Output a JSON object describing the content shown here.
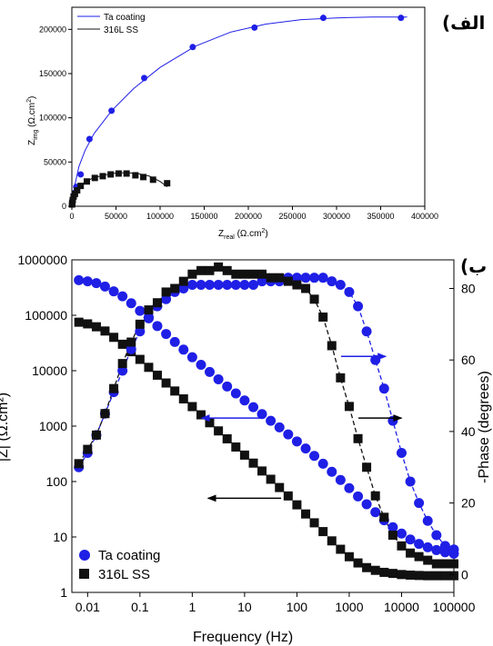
{
  "panel_labels": {
    "top": "(الف",
    "bottom": "(ب"
  },
  "colors": {
    "ta": "#1f1fe6",
    "ss": "#111111",
    "arrow_blue": "#1f1fe6",
    "arrow_black": "#000000"
  },
  "chart_data": [
    {
      "type": "scatter",
      "title": "",
      "xlabel": "Z_real (Ω.cm²)",
      "ylabel": "Z_img (Ω.cm²)",
      "xlabel_text": {
        "main": "Z",
        "sub": "real",
        "unit": " (Ω.cm",
        "sup": "2",
        "close": ")"
      },
      "ylabel_text": {
        "main": "Z",
        "sub": "img",
        "unit": " (Ω.cm",
        "sup": "2",
        "close": ")"
      },
      "xlim": [
        0,
        400000
      ],
      "ylim": [
        0,
        225000
      ],
      "x_ticks": [
        "0",
        "50000",
        "100000",
        "150000",
        "200000",
        "250000",
        "300000",
        "350000",
        "400000"
      ],
      "y_ticks": [
        "0",
        "50000",
        "100000",
        "150000",
        "200000"
      ],
      "legend": "top-left",
      "grid": false,
      "series": [
        {
          "name": "Ta coating",
          "marker": "circle",
          "line": "solid-fit",
          "x": [
            300,
            800,
            1500,
            3000,
            5000,
            10000,
            20000,
            45000,
            82000,
            137000,
            207000,
            285000,
            373000
          ],
          "y": [
            2000,
            5000,
            9000,
            15000,
            22000,
            36000,
            76000,
            108000,
            145000,
            180000,
            202000,
            213000,
            213000
          ],
          "fit_x": [
            0,
            3000,
            8000,
            15000,
            25000,
            45000,
            70000,
            100000,
            140000,
            180000,
            220000,
            260000,
            300000,
            340000,
            380000
          ],
          "fit_y": [
            0,
            22000,
            45000,
            63000,
            82000,
            108000,
            133000,
            157000,
            181000,
            197000,
            206000,
            211000,
            213000,
            214000,
            214000
          ]
        },
        {
          "name": "316L SS",
          "marker": "square",
          "line": "solid-fit",
          "x": [
            200,
            500,
            1000,
            2000,
            3500,
            6000,
            10000,
            17000,
            26000,
            35000,
            44000,
            53000,
            62000,
            72000,
            81000,
            92000,
            108000
          ],
          "y": [
            2000,
            4000,
            7000,
            11000,
            14000,
            18000,
            23000,
            28000,
            32000,
            34000,
            36000,
            37000,
            37000,
            35000,
            33000,
            30000,
            26000
          ],
          "fit_x": [
            0,
            5000,
            12000,
            22000,
            35000,
            50000,
            62000,
            75000,
            88000,
            100000,
            108000
          ],
          "fit_y": [
            0,
            17000,
            25000,
            31000,
            35000,
            37500,
            38000,
            37000,
            34000,
            28000,
            22000
          ]
        }
      ]
    },
    {
      "type": "scatter",
      "title": "",
      "xlabel": "Frequency (Hz)",
      "ylabel_left": "|Z| (Ω.cm²)",
      "ylabel_right": "-Phase (degrees)",
      "x_scale": "log",
      "y_left_scale": "log",
      "xlim": [
        0.005,
        100000
      ],
      "ylim_left": [
        1,
        1000000
      ],
      "ylim_right": [
        -5,
        88
      ],
      "x_ticks": [
        "0.01",
        "0.1",
        "1",
        "10",
        "100",
        "1000",
        "10000",
        "100000"
      ],
      "y_left_ticks": [
        "1",
        "10",
        "100",
        "1000",
        "10000",
        "100000",
        "1000000"
      ],
      "y_right_ticks": [
        "0",
        "20",
        "40",
        "60",
        "80"
      ],
      "legend": "bottom-left",
      "grid": false,
      "series": [
        {
          "name": "Ta coating",
          "quantity": "|Z|",
          "axis": "left",
          "marker": "circle",
          "x": [
            0.0068,
            0.01,
            0.0147,
            0.0215,
            0.0316,
            0.0464,
            0.0681,
            0.1,
            0.147,
            0.215,
            0.316,
            0.464,
            0.681,
            1,
            1.47,
            2.15,
            3.16,
            4.64,
            6.81,
            10,
            14.7,
            21.5,
            31.6,
            46.4,
            68.1,
            100,
            147,
            215,
            316,
            464,
            681,
            1000,
            1470,
            2150,
            3160,
            4640,
            6810,
            10000,
            14700,
            21500,
            31600,
            46400,
            68100,
            100000
          ],
          "y": [
            430000,
            410000,
            380000,
            330000,
            270000,
            220000,
            165000,
            120000,
            88000,
            64000,
            46000,
            33000,
            24000,
            17500,
            12800,
            9500,
            7000,
            5200,
            3900,
            2900,
            2200,
            1650,
            1250,
            950,
            710,
            530,
            395,
            290,
            210,
            150,
            107,
            76,
            54,
            39,
            28,
            20,
            15,
            11.5,
            9,
            7.5,
            6.5,
            5.8,
            5.3,
            5
          ]
        },
        {
          "name": "316L SS",
          "quantity": "|Z|",
          "axis": "left",
          "marker": "square",
          "x": [
            0.0068,
            0.01,
            0.0147,
            0.0215,
            0.0316,
            0.0464,
            0.0681,
            0.1,
            0.147,
            0.215,
            0.316,
            0.464,
            0.681,
            1,
            1.47,
            2.15,
            3.16,
            4.64,
            6.81,
            10,
            14.7,
            21.5,
            31.6,
            46.4,
            68.1,
            100,
            147,
            215,
            316,
            464,
            681,
            1000,
            1470,
            2150,
            3160,
            4640,
            6810,
            10000,
            14700,
            21500,
            31600,
            46400,
            68100,
            100000
          ],
          "y": [
            75000,
            70000,
            62000,
            52000,
            40000,
            30000,
            22000,
            16000,
            11500,
            8300,
            6000,
            4300,
            3100,
            2250,
            1600,
            1150,
            820,
            590,
            420,
            300,
            215,
            155,
            110,
            78,
            55,
            38,
            26,
            18,
            12.5,
            8.5,
            6,
            4.4,
            3.4,
            2.8,
            2.5,
            2.3,
            2.2,
            2.1,
            2.05,
            2.02,
            2,
            2,
            2,
            2
          ]
        },
        {
          "name": "Ta coating",
          "quantity": "-Phase",
          "axis": "right",
          "marker": "circle",
          "x": [
            0.0068,
            0.01,
            0.0147,
            0.0215,
            0.0316,
            0.0464,
            0.0681,
            0.1,
            0.147,
            0.215,
            0.316,
            0.464,
            0.681,
            1,
            1.47,
            2.15,
            3.16,
            4.64,
            6.81,
            10,
            14.7,
            21.5,
            31.6,
            46.4,
            68.1,
            100,
            147,
            215,
            316,
            464,
            681,
            1000,
            1470,
            2150,
            3160,
            4640,
            6810,
            10000,
            14700,
            21500,
            31600,
            46400,
            68100,
            100000
          ],
          "y": [
            30,
            34,
            39,
            45,
            51,
            57,
            63,
            68,
            72,
            75,
            77,
            79,
            80,
            81,
            81,
            81,
            81,
            81,
            81,
            81,
            81,
            82,
            82,
            82,
            83,
            83,
            83,
            83,
            83,
            82,
            81,
            79,
            75,
            68,
            60,
            52,
            43,
            34,
            26,
            20,
            15,
            11,
            8,
            7
          ]
        },
        {
          "name": "316L SS",
          "quantity": "-Phase",
          "axis": "right",
          "marker": "square",
          "x": [
            0.0068,
            0.01,
            0.0147,
            0.0215,
            0.0316,
            0.0464,
            0.0681,
            0.1,
            0.147,
            0.215,
            0.316,
            0.464,
            0.681,
            1,
            1.47,
            2.15,
            3.16,
            4.64,
            6.81,
            10,
            14.7,
            21.5,
            31.6,
            46.4,
            68.1,
            100,
            147,
            215,
            316,
            464,
            681,
            1000,
            1470,
            2150,
            3160,
            4640,
            6810,
            10000,
            14700,
            21500,
            31600,
            46400,
            68100,
            100000
          ],
          "y": [
            31,
            35,
            39,
            45,
            52,
            59,
            65,
            70,
            74,
            76,
            79,
            80,
            82,
            84,
            85,
            85,
            86,
            85,
            84,
            84,
            84,
            84,
            83,
            83,
            82,
            81,
            80,
            77,
            72,
            64,
            55,
            47,
            38,
            30,
            22,
            16,
            11,
            8,
            6,
            5,
            4,
            3,
            3,
            3
          ]
        }
      ],
      "annotations": [
        {
          "type": "arrow",
          "direction": "right",
          "color": "blue",
          "x_from": 700,
          "x_to": 5000,
          "y_axis": "right",
          "y": 61
        },
        {
          "type": "arrow",
          "direction": "left",
          "color": "blue",
          "x_from": 20,
          "x_to": 1.5,
          "y_axis": "left",
          "y": 1400
        },
        {
          "type": "arrow",
          "direction": "right",
          "color": "black",
          "x_from": 1500,
          "x_to": 10000,
          "y_axis": "left",
          "y": 1400
        },
        {
          "type": "arrow",
          "direction": "left",
          "color": "black",
          "x_from": 50,
          "x_to": 2,
          "y_axis": "left",
          "y": 50
        }
      ]
    }
  ]
}
